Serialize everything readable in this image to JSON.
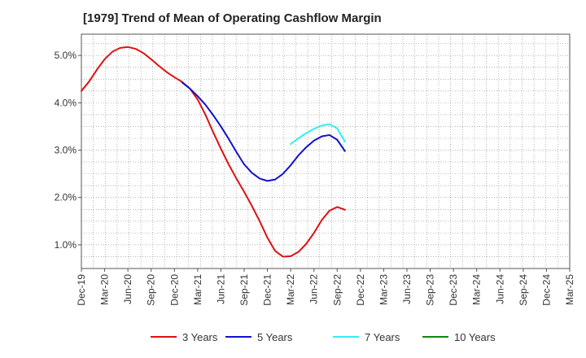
{
  "chart_data": {
    "type": "line",
    "title": "[1979]  Trend of Mean of Operating Cashflow Margin",
    "xlabel": "",
    "ylabel": "",
    "ylim": [
      0.5,
      5.45
    ],
    "y_ticks": [
      1.0,
      2.0,
      3.0,
      4.0,
      5.0
    ],
    "y_tick_labels": [
      "1.0%",
      "2.0%",
      "3.0%",
      "4.0%",
      "5.0%"
    ],
    "x_tick_labels": [
      "Dec-19",
      "Mar-20",
      "Jun-20",
      "Sep-20",
      "Dec-20",
      "Mar-21",
      "Jun-21",
      "Sep-21",
      "Dec-21",
      "Mar-22",
      "Jun-22",
      "Sep-22",
      "Dec-22",
      "Mar-23",
      "Jun-23",
      "Sep-23",
      "Dec-23",
      "Mar-24",
      "Jun-24",
      "Sep-24",
      "Dec-24",
      "Mar-25"
    ],
    "grid": true,
    "legend_position": "bottom",
    "series": [
      {
        "name": "3 Years",
        "color": "#dd1111",
        "values": [
          4.25,
          4.45,
          4.7,
          4.92,
          5.08,
          5.16,
          5.18,
          5.14,
          5.05,
          4.92,
          4.78,
          4.65,
          4.54,
          4.44,
          4.3,
          4.07,
          3.75,
          3.38,
          3.03,
          2.7,
          2.4,
          2.12,
          1.82,
          1.5,
          1.15,
          0.87,
          0.75,
          0.76,
          0.85,
          1.02,
          1.25,
          1.52,
          1.72,
          1.8,
          1.74
        ]
      },
      {
        "name": "5 Years",
        "color": "#1111cc",
        "values": [
          null,
          null,
          null,
          null,
          null,
          null,
          null,
          null,
          null,
          null,
          null,
          null,
          null,
          4.43,
          4.3,
          4.14,
          3.96,
          3.74,
          3.5,
          3.24,
          2.96,
          2.7,
          2.52,
          2.4,
          2.35,
          2.38,
          2.5,
          2.68,
          2.89,
          3.06,
          3.2,
          3.29,
          3.32,
          3.22,
          2.98
        ]
      },
      {
        "name": "7 Years",
        "color": "#33eeee",
        "values": [
          null,
          null,
          null,
          null,
          null,
          null,
          null,
          null,
          null,
          null,
          null,
          null,
          null,
          null,
          null,
          null,
          null,
          null,
          null,
          null,
          null,
          null,
          null,
          null,
          null,
          null,
          null,
          3.13,
          3.25,
          3.36,
          3.45,
          3.52,
          3.55,
          3.46,
          3.18
        ]
      },
      {
        "name": "10 Years",
        "color": "#118811",
        "values": []
      }
    ]
  }
}
